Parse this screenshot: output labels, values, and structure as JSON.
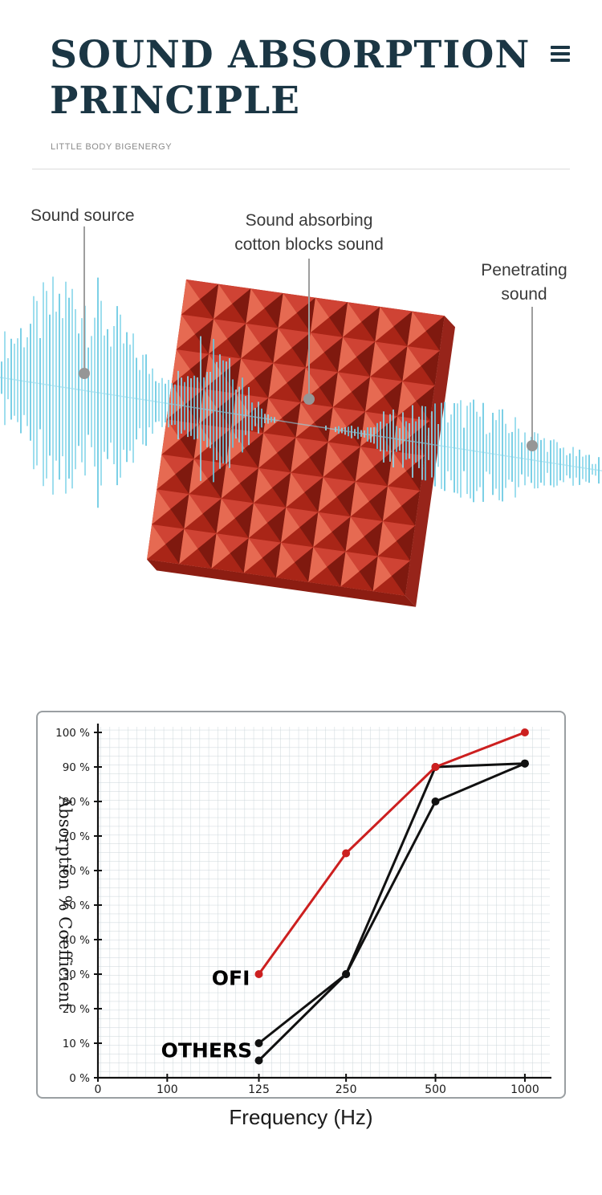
{
  "header": {
    "title_line1": "SOUND ABSORPTION",
    "title_line2": "PRINCIPLE",
    "subtitle": "LITTLE BODY BIGENERGY"
  },
  "diagram": {
    "labels": {
      "sound_source": "Sound source",
      "absorbing_line1": "Sound absorbing",
      "absorbing_line2": "cotton blocks sound",
      "penetrating_line1": "Penetrating",
      "penetrating_line2": "sound"
    },
    "colors": {
      "wave": "#8ed9ec",
      "wave_dark": "#66c8e2",
      "leader": "#9e9e9e",
      "dot": "#969696",
      "panel_base": "#b5301f",
      "pyramid_top": "#cf4334",
      "pyramid_right": "#7f190f",
      "pyramid_bottom": "#a92517",
      "pyramid_left": "#e66a52",
      "panel_side": "#97241a",
      "panel_bottom": "#8c1d12"
    }
  },
  "chart_data": {
    "type": "line",
    "title": "",
    "xlabel": "Frequency (Hz)",
    "ylabel": "Absorption % Coefficient",
    "categories": [
      125,
      250,
      500,
      1000
    ],
    "series": [
      {
        "name": "OFI",
        "color": "#cc1f1f",
        "values": [
          30,
          65,
          90,
          100
        ]
      },
      {
        "name": "OTHERS",
        "color": "#111111",
        "values": [
          10,
          30,
          90,
          91
        ]
      },
      {
        "name": "OTHERS",
        "color": "#111111",
        "values": [
          5,
          30,
          80,
          91
        ]
      }
    ],
    "yticks": [
      0,
      10,
      20,
      30,
      40,
      50,
      60,
      70,
      80,
      90,
      100
    ],
    "ytick_suffix": " %",
    "xticks": [
      {
        "label": "0",
        "pos": 0
      },
      {
        "label": "100",
        "pos": 0.155
      },
      {
        "label": "125",
        "pos": 0.36
      },
      {
        "label": "250",
        "pos": 0.555
      },
      {
        "label": "500",
        "pos": 0.755
      },
      {
        "label": "1000",
        "pos": 0.955
      }
    ],
    "series_x_pos": [
      0.36,
      0.555,
      0.755,
      0.955
    ],
    "ylim": [
      0,
      100
    ],
    "grid": true,
    "legend_position": "none",
    "annotations": [
      {
        "text": "OFI",
        "x_pos": 0.34,
        "value": 29,
        "color": "#000000"
      },
      {
        "text": "OTHERS",
        "x_pos": 0.345,
        "value": 8,
        "color": "#000000"
      }
    ]
  }
}
